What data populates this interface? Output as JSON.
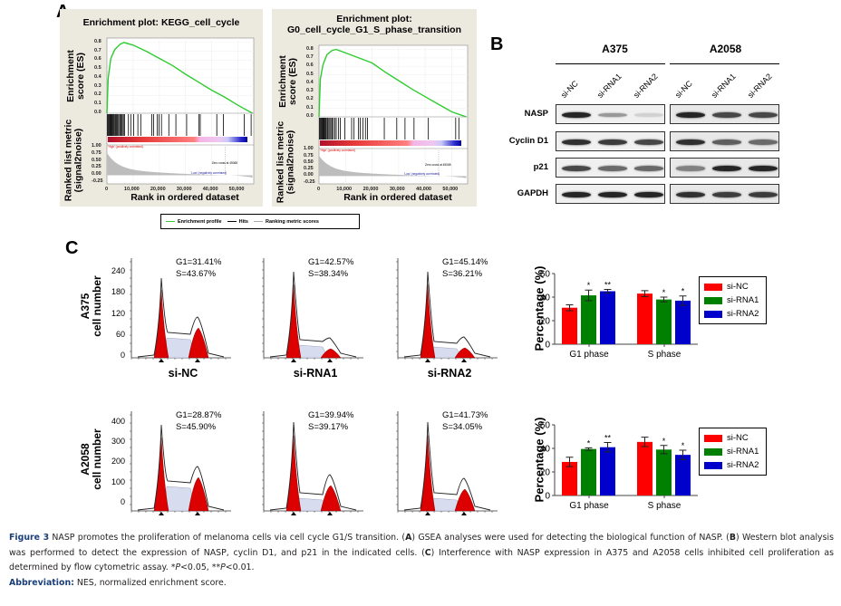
{
  "panels": {
    "A": "A",
    "B": "B",
    "C": "C"
  },
  "gsea": [
    {
      "title_lines": [
        "Enrichment plot: KEGG_cell_cycle"
      ],
      "es_ylabel": [
        "Enrichment",
        "score (ES)"
      ],
      "metric_ylabel": [
        "Ranked list metric",
        "(signal2noise)"
      ],
      "xlabel": "Rank in ordered dataset",
      "es_ticks": [
        "0.8",
        "0.7",
        "0.6",
        "0.5",
        "0.4",
        "0.3",
        "0.2",
        "0.1",
        "0.0"
      ],
      "metric_ticks": [
        "1.00",
        "0.75",
        "0.50",
        "0.25",
        "0.00",
        "-0.25"
      ],
      "x_ticks": [
        "0",
        "10,000",
        "20,000",
        "30,000",
        "40,000",
        "50,000"
      ],
      "high_label": "'High' (positively correlated)",
      "low_label": "'Low' (negatively correlated)",
      "zero_cross": "Zero cross at 45068",
      "es_curve": [
        [
          0,
          0.0
        ],
        [
          500,
          0.4
        ],
        [
          1500,
          0.62
        ],
        [
          3000,
          0.72
        ],
        [
          5000,
          0.78
        ],
        [
          6500,
          0.8
        ],
        [
          10000,
          0.77
        ],
        [
          15000,
          0.7
        ],
        [
          20000,
          0.62
        ],
        [
          25000,
          0.54
        ],
        [
          30000,
          0.44
        ],
        [
          35000,
          0.35
        ],
        [
          40000,
          0.26
        ],
        [
          45000,
          0.18
        ],
        [
          50000,
          0.09
        ],
        [
          55500,
          0.0
        ]
      ],
      "hits": [
        200,
        500,
        800,
        1100,
        1400,
        1700,
        2000,
        2300,
        2600,
        3000,
        3300,
        3600,
        4000,
        4400,
        4800,
        5200,
        5500,
        5900,
        6300,
        6700,
        8200,
        9100,
        10200,
        11800,
        12900,
        17100,
        17800,
        19200,
        19900,
        20800,
        23600,
        26300,
        30400,
        35100,
        35600,
        41900,
        44400,
        52400,
        55000
      ]
    },
    {
      "title_lines": [
        "Enrichment plot:",
        "G0_cell_cycle_G1_S_phase_transition"
      ],
      "es_ylabel": [
        "Enrichment",
        "score (ES)"
      ],
      "metric_ylabel": [
        "Ranked list metric",
        "(signal2noise)"
      ],
      "xlabel": "Rank in ordered dataset",
      "es_ticks": [
        "0.8",
        "0.7",
        "0.6",
        "0.5",
        "0.4",
        "0.3",
        "0.2",
        "0.1",
        "0.0"
      ],
      "metric_ticks": [
        "1.00",
        "0.75",
        "0.50",
        "0.25",
        "0.00",
        "-0.25"
      ],
      "x_ticks": [
        "0",
        "10,000",
        "20,000",
        "30,000",
        "40,000",
        "50,000"
      ],
      "high_label": "'High' (positively correlated)",
      "low_label": "'Low' (negatively correlated)",
      "zero_cross": "Zero cross at 45068",
      "es_curve": [
        [
          0,
          0.0
        ],
        [
          500,
          0.45
        ],
        [
          1500,
          0.62
        ],
        [
          3000,
          0.74
        ],
        [
          5000,
          0.79
        ],
        [
          6500,
          0.8
        ],
        [
          10000,
          0.76
        ],
        [
          15000,
          0.7
        ],
        [
          20000,
          0.64
        ],
        [
          25000,
          0.53
        ],
        [
          30000,
          0.43
        ],
        [
          35000,
          0.33
        ],
        [
          40000,
          0.24
        ],
        [
          45000,
          0.15
        ],
        [
          50000,
          0.06
        ],
        [
          55500,
          0.0
        ]
      ],
      "hits": [
        200,
        500,
        800,
        1100,
        1400,
        1700,
        2000,
        2300,
        2600,
        3000,
        3300,
        3700,
        4100,
        4500,
        5000,
        5400,
        6000,
        6500,
        7300,
        8000,
        9700,
        12300,
        13200,
        14900,
        15500,
        16600,
        17500,
        18300,
        24600,
        29300,
        32400,
        35800,
        41200,
        51500,
        52700
      ]
    }
  ],
  "gsea_legend": {
    "items": [
      {
        "label": "Enrichment profile",
        "color": "#2ecc2e"
      },
      {
        "label": "Hits",
        "color": "#000000"
      },
      {
        "label": "Ranking metric scores",
        "color": "#aaaaaa"
      }
    ]
  },
  "western": {
    "cell_lines": [
      "A375",
      "A2058"
    ],
    "lanes": [
      "si-NC",
      "si-RNA1",
      "si-RNA2"
    ],
    "proteins": [
      "NASP",
      "Cyclin D1",
      "p21",
      "GAPDH"
    ],
    "band_intensity": {
      "A375": {
        "NASP": [
          0.95,
          0.45,
          0.2
        ],
        "Cyclin D1": [
          0.9,
          0.85,
          0.8
        ],
        "p21": [
          0.8,
          0.65,
          0.65
        ],
        "GAPDH": [
          0.95,
          0.95,
          0.95
        ]
      },
      "A2058": {
        "NASP": [
          0.95,
          0.8,
          0.8
        ],
        "Cyclin D1": [
          0.9,
          0.7,
          0.65
        ],
        "p21": [
          0.55,
          0.95,
          0.95
        ],
        "GAPDH": [
          0.9,
          0.85,
          0.85
        ]
      }
    }
  },
  "flow": {
    "rows": [
      {
        "cell_line": "A375",
        "ylabel": "cell number",
        "yticks": [
          "240",
          "180",
          "120",
          "60",
          "0"
        ],
        "samples": [
          {
            "condition": "si-NC",
            "g1": "G1=31.41%",
            "s": "S=43.67%"
          },
          {
            "condition": "si-RNA1",
            "g1": "G1=42.57%",
            "s": "S=38.34%"
          },
          {
            "condition": "si-RNA2",
            "g1": "G1=45.14%",
            "s": "S=36.21%"
          }
        ]
      },
      {
        "cell_line": "A2058",
        "ylabel": "cell number",
        "yticks": [
          "400",
          "300",
          "200",
          "100",
          "0"
        ],
        "samples": [
          {
            "condition": "si-NC",
            "g1": "G1=28.87%",
            "s": "S=45.90%"
          },
          {
            "condition": "si-RNA1",
            "g1": "G1=39.94%",
            "s": "S=39.17%"
          },
          {
            "condition": "si-RNA2",
            "g1": "G1=41.73%",
            "s": "S=34.05%"
          }
        ]
      }
    ]
  },
  "chart_data": [
    {
      "type": "bar",
      "title": "A375",
      "categories": [
        "G1 phase",
        "S phase"
      ],
      "series": [
        {
          "name": "si-NC",
          "color": "#ff0000",
          "values": [
            31,
            43
          ],
          "errors": [
            2.5,
            2.5
          ],
          "sig": [
            "",
            ""
          ]
        },
        {
          "name": "si-RNA1",
          "color": "#008000",
          "values": [
            41.5,
            38
          ],
          "errors": [
            4.5,
            2
          ],
          "sig": [
            "*",
            "*"
          ]
        },
        {
          "name": "si-RNA2",
          "color": "#0000cc",
          "values": [
            45,
            37
          ],
          "errors": [
            1.5,
            4
          ],
          "sig": [
            "**",
            "*"
          ]
        }
      ],
      "ylabel": "Percentage (%)",
      "yticks": [
        0,
        20,
        40,
        60
      ],
      "ylim": [
        0,
        60
      ],
      "legend": "right"
    },
    {
      "type": "bar",
      "title": "A2058",
      "categories": [
        "G1 phase",
        "S phase"
      ],
      "series": [
        {
          "name": "si-NC",
          "color": "#ff0000",
          "values": [
            28.5,
            45.5
          ],
          "errors": [
            4,
            4
          ],
          "sig": [
            "",
            ""
          ]
        },
        {
          "name": "si-RNA1",
          "color": "#008000",
          "values": [
            39.5,
            39
          ],
          "errors": [
            1,
            3.5
          ],
          "sig": [
            "*",
            "*"
          ]
        },
        {
          "name": "si-RNA2",
          "color": "#0000cc",
          "values": [
            41,
            34.5
          ],
          "errors": [
            4,
            4
          ],
          "sig": [
            "**",
            "*"
          ]
        }
      ],
      "ylabel": "Percentage (%)",
      "yticks": [
        0,
        20,
        40,
        60
      ],
      "ylim": [
        0,
        60
      ],
      "legend": "right"
    }
  ],
  "caption": {
    "fig_label": "Figure 3",
    "text1": " NASP promotes the proliferation of melanoma cells via cell cycle G1/S transition. (",
    "A": "A",
    "text2": ") GSEA analyses were used for detecting the biological function of NASP. (",
    "B": "B",
    "text3": ") Western blot analysis was performed to detect the expression of NASP, cyclin D1, and p21 in the indicated cells. (",
    "C": "C",
    "text4": ") Interference with NASP expression in A375 and A2058 cells inhibited cell proliferation as determined by flow cytometric assay. *",
    "p1": "P",
    "text5": "<0.05, **",
    "p2": "P",
    "text6": "<0.01.",
    "abbr_label": "Abbreviation:",
    "abbr_text": " NES, normalized enrichment score."
  }
}
